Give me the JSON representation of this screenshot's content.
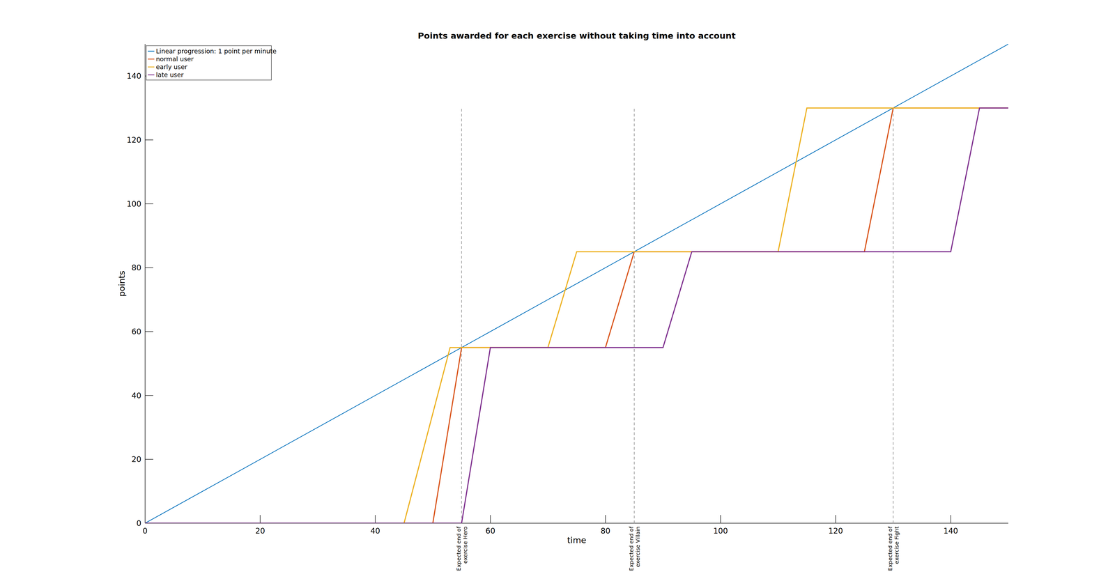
{
  "chart_data": {
    "type": "line",
    "title": "Points awarded for each exercise without taking time into account",
    "x_label": "time",
    "y_label": "points",
    "xlim": [
      0,
      150
    ],
    "xticks": [
      0,
      20,
      40,
      60,
      80,
      100,
      120,
      140
    ],
    "ylim": [
      0,
      150
    ],
    "yticks": [
      0,
      20,
      40,
      60,
      80,
      100,
      120,
      140
    ],
    "grid": false,
    "legend": "top-left",
    "series": [
      {
        "name": "Linear progression: 1 point per minute",
        "color": "#0072bd",
        "x": [
          0,
          150
        ],
        "values": [
          0,
          150
        ]
      },
      {
        "name": "normal user",
        "color": "#d95319",
        "x": [
          0,
          50,
          55,
          80,
          85,
          125,
          130,
          150
        ],
        "values": [
          0,
          0,
          55,
          55,
          85,
          85,
          130,
          130
        ]
      },
      {
        "name": "early user",
        "color": "#edb120",
        "x": [
          0,
          45,
          53,
          70,
          75,
          110,
          115,
          150
        ],
        "values": [
          0,
          0,
          55,
          55,
          85,
          85,
          130,
          130
        ]
      },
      {
        "name": "late user",
        "color": "#7e2f8e",
        "x": [
          0,
          55,
          60,
          90,
          95,
          140,
          145,
          150
        ],
        "values": [
          0,
          0,
          55,
          55,
          85,
          85,
          130,
          130
        ]
      }
    ],
    "annotations": [
      {
        "x": 55,
        "ymax": 130,
        "text": [
          "Expected end of",
          "exercise Hero"
        ]
      },
      {
        "x": 85,
        "ymax": 130,
        "text": [
          "Expected end of",
          "exercise Villain"
        ]
      },
      {
        "x": 130,
        "ymax": 130,
        "text": [
          "Expected end of",
          "exercise Fight"
        ]
      }
    ]
  }
}
